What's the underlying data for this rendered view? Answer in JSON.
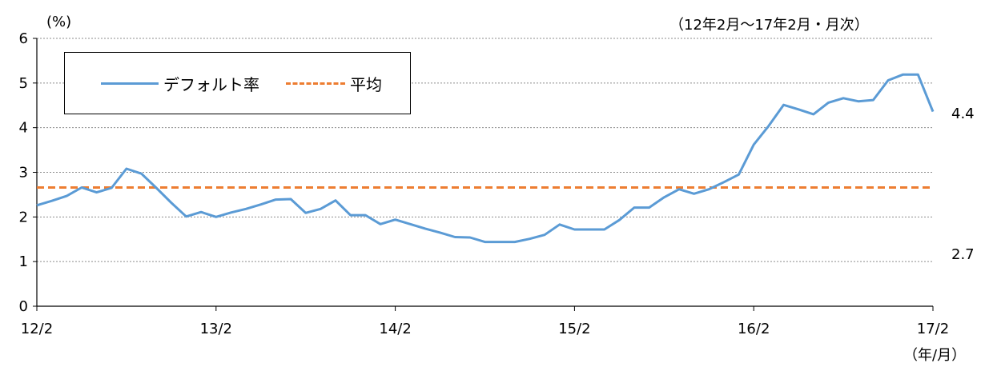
{
  "chart_data": {
    "type": "line",
    "unit_label": "(%)",
    "period_note": "（12年2月～17年2月・月次）",
    "x_unit_label": "（年/月）",
    "ylim": [
      0,
      6
    ],
    "y_ticks": [
      "0",
      "1",
      "2",
      "3",
      "4",
      "5",
      "6"
    ],
    "x_ticks": [
      "12/2",
      "13/2",
      "14/2",
      "15/2",
      "16/2",
      "17/2"
    ],
    "grid": true,
    "legend_position": "top-left",
    "series": [
      {
        "name": "デフォルト率",
        "color": "#5B9BD5",
        "style": "solid",
        "values": [
          2.26,
          2.36,
          2.47,
          2.66,
          2.55,
          2.65,
          3.08,
          2.97,
          2.65,
          2.32,
          2.01,
          2.11,
          2.0,
          2.1,
          2.18,
          2.28,
          2.39,
          2.4,
          2.09,
          2.18,
          2.37,
          2.04,
          2.04,
          1.84,
          1.94,
          1.84,
          1.74,
          1.65,
          1.55,
          1.54,
          1.44,
          1.44,
          1.44,
          1.51,
          1.6,
          1.83,
          1.72,
          1.72,
          1.72,
          1.93,
          2.21,
          2.21,
          2.44,
          2.62,
          2.52,
          2.62,
          2.78,
          2.95,
          3.62,
          4.04,
          4.51,
          4.41,
          4.3,
          4.56,
          4.66,
          4.59,
          4.62,
          5.06,
          5.19,
          5.19,
          4.36
        ]
      },
      {
        "name": "平均",
        "color": "#ED7D31",
        "style": "dashed",
        "values": [
          2.66,
          2.66
        ]
      }
    ],
    "end_labels": [
      "4.4",
      "2.7"
    ]
  }
}
